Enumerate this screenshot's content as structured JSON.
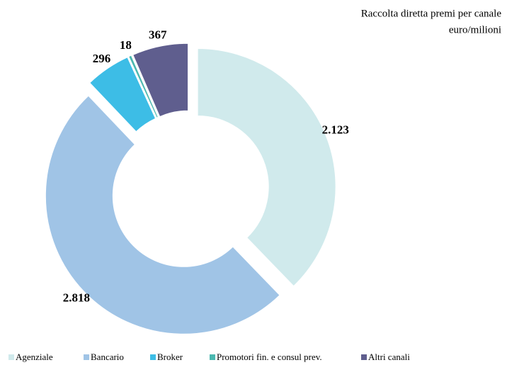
{
  "chart_data": {
    "type": "donut",
    "title": "Raccolta diretta premi per canale",
    "subtitle": "euro/milioni",
    "categories": [
      "Agenziale",
      "Bancario",
      "Broker",
      "Promotori fin. e consul prev.",
      "Altri canali"
    ],
    "values": [
      2123,
      2818,
      296,
      18,
      367
    ],
    "value_labels": [
      "2.123",
      "2.818",
      "296",
      "18",
      "367"
    ],
    "colors": [
      "#d0eaec",
      "#a0c4e6",
      "#3dbde6",
      "#4bb8b0",
      "#5f5e8e"
    ],
    "legend": "bottom"
  }
}
